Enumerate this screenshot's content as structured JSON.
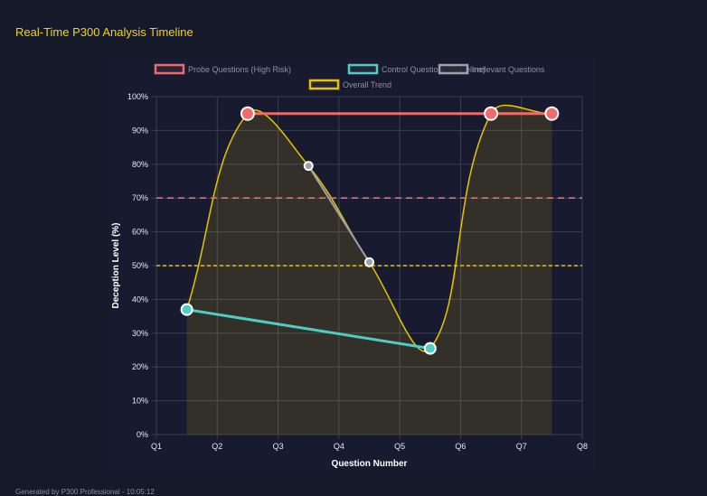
{
  "header": {
    "title": "Real-Time P300 Analysis Timeline"
  },
  "footer": {
    "text": "Generated by P300 Professional - 10:05:12"
  },
  "chart_data": {
    "type": "line",
    "xlabel": "Question Number",
    "ylabel": "Deception Level (%)",
    "x_ticks": [
      "Q1",
      "Q2",
      "Q3",
      "Q4",
      "Q5",
      "Q6",
      "Q7",
      "Q8"
    ],
    "y_ticks": [
      "0%",
      "10%",
      "20%",
      "30%",
      "40%",
      "50%",
      "60%",
      "70%",
      "80%",
      "90%",
      "100%"
    ],
    "ylim": [
      0,
      100
    ],
    "grid": true,
    "legend_position": "top",
    "series": [
      {
        "name": "Probe Questions (High Risk)",
        "color": "#f06a6a",
        "points": [
          [
            2.5,
            95
          ],
          [
            6.5,
            95
          ],
          [
            7.5,
            95
          ]
        ]
      },
      {
        "name": "Control Questions (Baseline)",
        "color": "#4ecdc4",
        "points": [
          [
            1.5,
            37
          ],
          [
            5.5,
            25.5
          ]
        ]
      },
      {
        "name": "Irrelevant Questions",
        "color": "#a0a0a8",
        "points": [
          [
            3.5,
            79.5
          ],
          [
            4.5,
            51
          ]
        ]
      },
      {
        "name": "Overall Trend",
        "color": "#e6c200",
        "points": [
          [
            1.5,
            37
          ],
          [
            2.5,
            95
          ],
          [
            3.5,
            79.5
          ],
          [
            4.5,
            51
          ],
          [
            5.5,
            25.5
          ],
          [
            6.5,
            95
          ],
          [
            7.5,
            95
          ]
        ]
      }
    ],
    "thresholds": [
      {
        "value": 70,
        "color": "#f06a6a"
      },
      {
        "value": 50,
        "color": "#e6c200"
      }
    ]
  }
}
